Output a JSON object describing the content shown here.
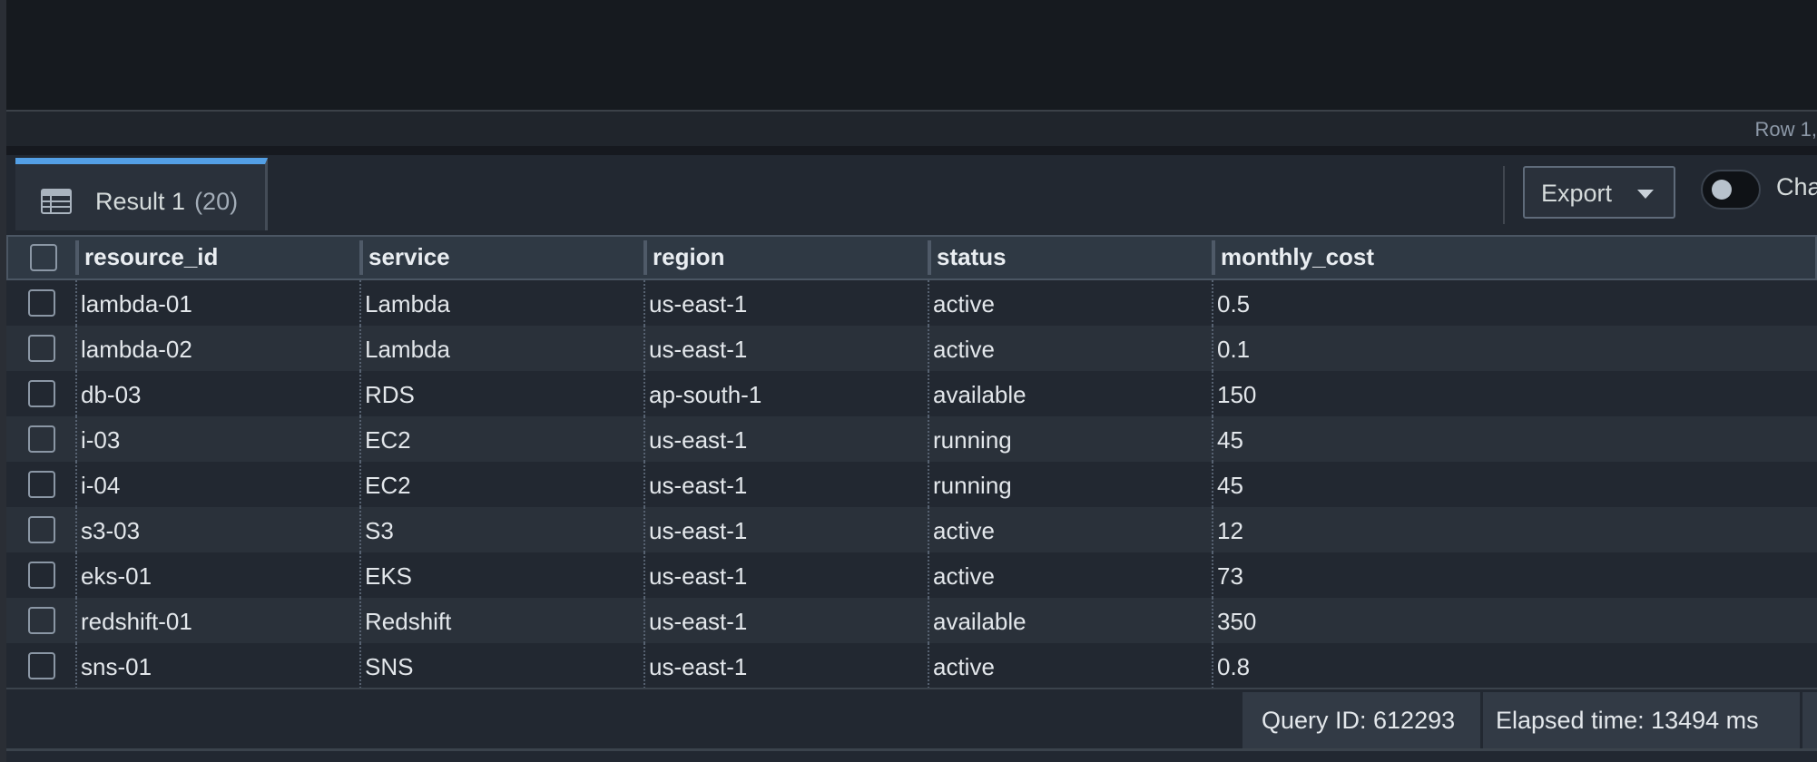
{
  "status_bar": {
    "cursor_position": "Row 1,"
  },
  "result_tab": {
    "label": "Result 1",
    "count": "(20)",
    "icon": "table-icon"
  },
  "toolbar": {
    "export_label": "Export",
    "toggle_label": "Cha",
    "toggle_on": false
  },
  "table": {
    "columns": [
      "resource_id",
      "service",
      "region",
      "status",
      "monthly_cost"
    ],
    "rows": [
      [
        "lambda-01",
        "Lambda",
        "us-east-1",
        "active",
        "0.5"
      ],
      [
        "lambda-02",
        "Lambda",
        "us-east-1",
        "active",
        "0.1"
      ],
      [
        "db-03",
        "RDS",
        "ap-south-1",
        "available",
        "150"
      ],
      [
        "i-03",
        "EC2",
        "us-east-1",
        "running",
        "45"
      ],
      [
        "i-04",
        "EC2",
        "us-east-1",
        "running",
        "45"
      ],
      [
        "s3-03",
        "S3",
        "us-east-1",
        "active",
        "12"
      ],
      [
        "eks-01",
        "EKS",
        "us-east-1",
        "active",
        "73"
      ],
      [
        "redshift-01",
        "Redshift",
        "us-east-1",
        "available",
        "350"
      ],
      [
        "sns-01",
        "SNS",
        "us-east-1",
        "active",
        "0.8"
      ]
    ]
  },
  "footer": {
    "query_id": "Query ID: 612293",
    "elapsed": "Elapsed time: 13494 ms"
  }
}
